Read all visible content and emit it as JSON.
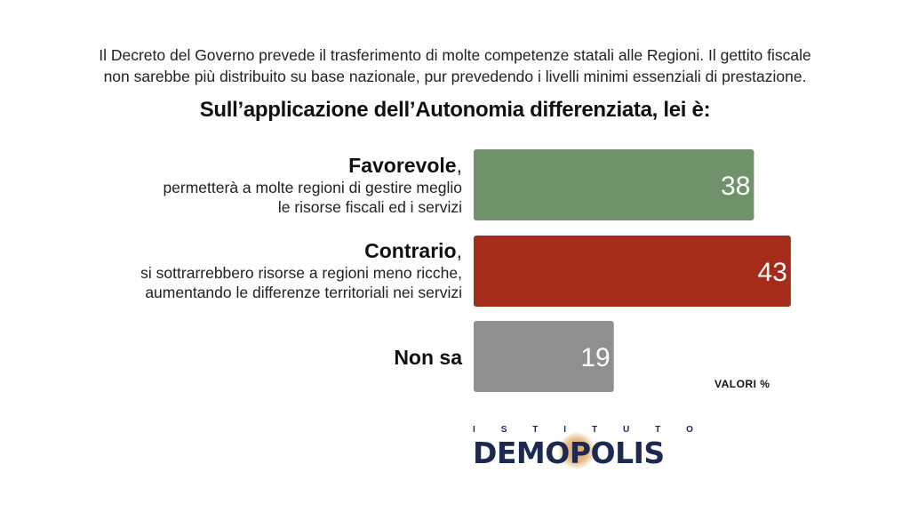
{
  "intro": {
    "line1": "Il Decreto del Governo prevede il trasferimento di molte competenze statali alle Regioni. Il gettito fiscale",
    "line2": "non sarebbe più distribuito su base nazionale, pur prevedendo i livelli minimi essenziali di prestazione."
  },
  "question": "Sull’applicazione dell’Autonomia differenziata, lei è:",
  "chart_data": {
    "type": "bar",
    "orientation": "horizontal",
    "categories": [
      "Favorevole",
      "Contrario",
      "Non sa"
    ],
    "values": [
      38,
      43,
      19
    ],
    "colors": [
      "#6f926b",
      "#a52c1b",
      "#8f8f8f"
    ],
    "units_label": "VALORI %",
    "xlim": [
      0,
      100
    ]
  },
  "rows": [
    {
      "title": "Favorevole",
      "punct": ",",
      "desc1": "permetterà a molte regioni di gestire meglio",
      "desc2": "le risorse fiscali ed i servizi"
    },
    {
      "title": "Contrario",
      "punct": ",",
      "desc1": "si sottrarrebbero risorse a regioni meno ricche,",
      "desc2": "aumentando le differenze territoriali nei servizi"
    },
    {
      "title": "Non sa",
      "punct": "",
      "desc1": "",
      "desc2": ""
    }
  ],
  "logo": {
    "istituto_letters": [
      "I",
      "S",
      "T",
      "I",
      "T",
      "U",
      "T",
      "O"
    ],
    "brand": "DEMOPOLIS"
  }
}
